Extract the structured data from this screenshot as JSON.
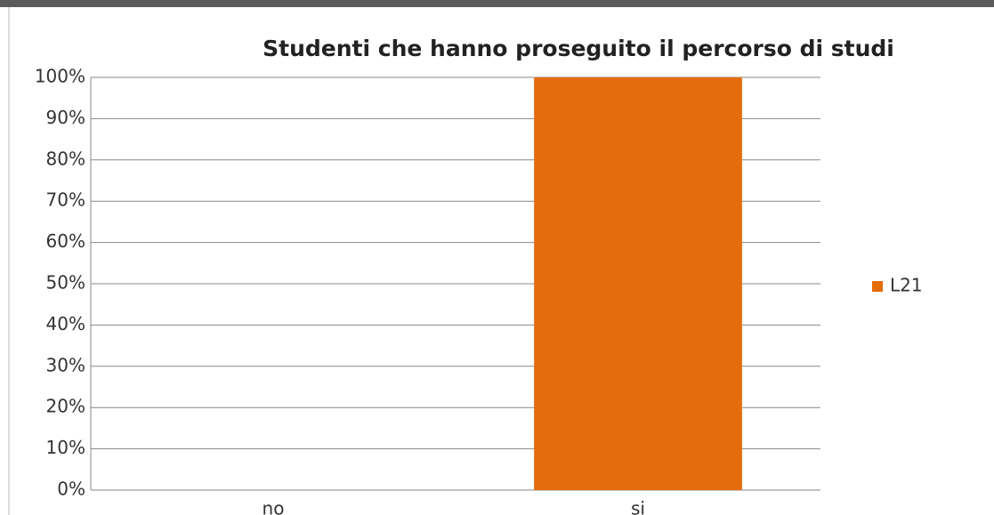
{
  "chart_data": {
    "type": "bar",
    "title": "Studenti che hanno proseguito il percorso di studi",
    "categories": [
      "no",
      "si"
    ],
    "series": [
      {
        "name": "L21",
        "color": "#e46c0a",
        "values": [
          0,
          100
        ]
      }
    ],
    "ylim": [
      0,
      100
    ],
    "yticks": [
      {
        "value": 0,
        "label": "0%"
      },
      {
        "value": 10,
        "label": "10%"
      },
      {
        "value": 20,
        "label": "20%"
      },
      {
        "value": 30,
        "label": "30%"
      },
      {
        "value": 40,
        "label": "40%"
      },
      {
        "value": 50,
        "label": "50%"
      },
      {
        "value": 60,
        "label": "60%"
      },
      {
        "value": 70,
        "label": "70%"
      },
      {
        "value": 80,
        "label": "80%"
      },
      {
        "value": 90,
        "label": "90%"
      },
      {
        "value": 100,
        "label": "100%"
      }
    ],
    "grid": true,
    "legend": "right"
  }
}
